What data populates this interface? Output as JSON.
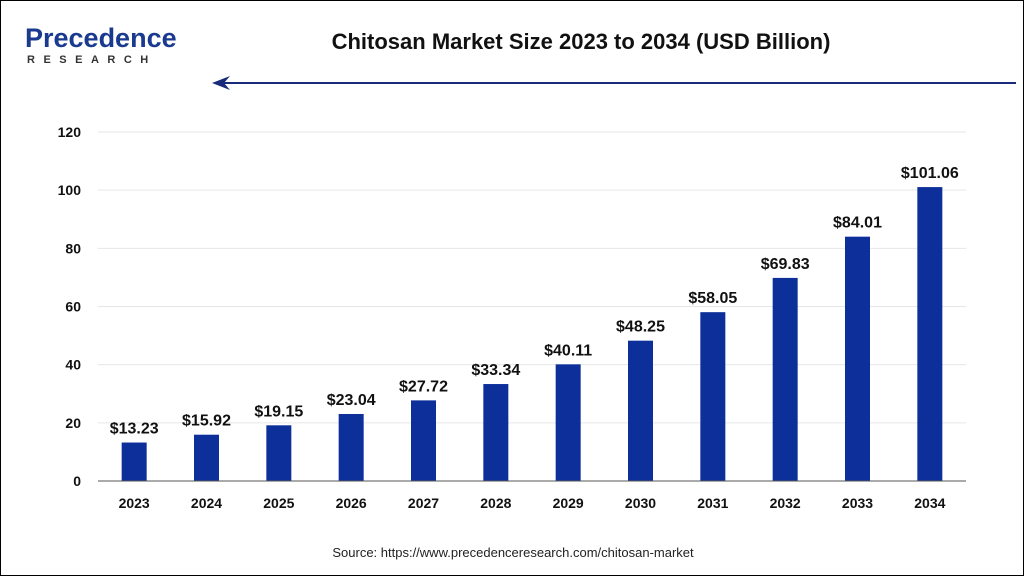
{
  "brand": {
    "name": "Precedence",
    "sub": "RESEARCH",
    "color": "#1a3a8f"
  },
  "colors": {
    "bar": "#0d2f9a",
    "arrow": "#1a2a7a",
    "grid": "#e6e6e6"
  },
  "chart_data": {
    "type": "bar",
    "title": "Chitosan Market Size 2023 to 2034 (USD Billion)",
    "xlabel": "",
    "ylabel": "",
    "ylim": [
      0,
      120
    ],
    "yticks": [
      0,
      20,
      40,
      60,
      80,
      100,
      120
    ],
    "grid": true,
    "categories": [
      "2023",
      "2024",
      "2025",
      "2026",
      "2027",
      "2028",
      "2029",
      "2030",
      "2031",
      "2032",
      "2033",
      "2034"
    ],
    "values": [
      13.23,
      15.92,
      19.15,
      23.04,
      27.72,
      33.34,
      40.11,
      48.25,
      58.05,
      69.83,
      84.01,
      101.06
    ],
    "data_labels": [
      "$13.23",
      "$15.92",
      "$19.15",
      "$23.04",
      "$27.72",
      "$33.34",
      "$40.11",
      "$48.25",
      "$58.05",
      "$69.83",
      "$84.01",
      "$101.06"
    ]
  },
  "source": "Source: https://www.precedenceresearch.com/chitosan-market"
}
